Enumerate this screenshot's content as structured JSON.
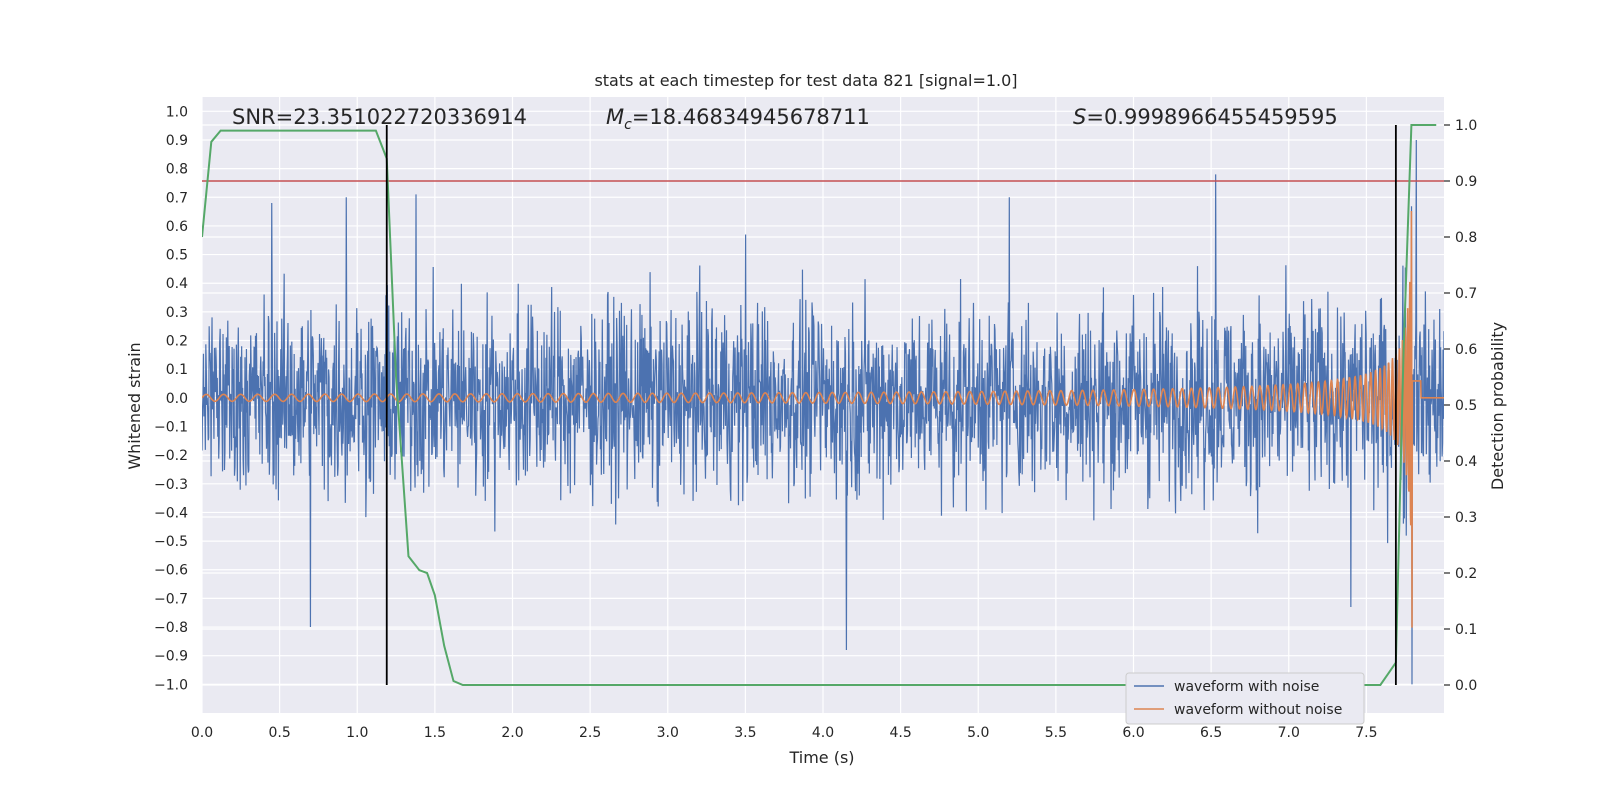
{
  "chart_data": {
    "type": "line",
    "title": "stats at each timestep for test data 821 [signal=1.0]",
    "xlabel": "Time (s)",
    "ylabel": "Whitened strain",
    "y2label": "Detection probability",
    "xlim": [
      0.0,
      8.0
    ],
    "ylim": [
      -1.1,
      1.05
    ],
    "y2lim": [
      -0.05,
      1.05
    ],
    "x_ticks": [
      0.0,
      0.5,
      1.0,
      1.5,
      2.0,
      2.5,
      3.0,
      3.5,
      4.0,
      4.5,
      5.0,
      5.5,
      6.0,
      6.5,
      7.0,
      7.5
    ],
    "x_tick_labels": [
      "0.0",
      "0.5",
      "1.0",
      "1.5",
      "2.0",
      "2.5",
      "3.0",
      "3.5",
      "4.0",
      "4.5",
      "5.0",
      "5.5",
      "6.0",
      "6.5",
      "7.0",
      "7.5"
    ],
    "y_ticks": [
      -1.0,
      -0.9,
      -0.8,
      -0.7,
      -0.6,
      -0.5,
      -0.4,
      -0.3,
      -0.2,
      -0.1,
      0.0,
      0.1,
      0.2,
      0.3,
      0.4,
      0.5,
      0.6,
      0.7,
      0.8,
      0.9,
      1.0
    ],
    "y_tick_labels": [
      "−1.0",
      "−0.9",
      "−0.8",
      "−0.7",
      "−0.6",
      "−0.5",
      "−0.4",
      "−0.3",
      "−0.2",
      "−0.1",
      "0.0",
      "0.1",
      "0.2",
      "0.3",
      "0.4",
      "0.5",
      "0.6",
      "0.7",
      "0.8",
      "0.9",
      "1.0"
    ],
    "y2_ticks": [
      0.0,
      0.1,
      0.2,
      0.3,
      0.4,
      0.5,
      0.6,
      0.7,
      0.8,
      0.9,
      1.0
    ],
    "y2_tick_labels": [
      "0.0",
      "0.1",
      "0.2",
      "0.3",
      "0.4",
      "0.5",
      "0.6",
      "0.7",
      "0.8",
      "0.9",
      "1.0"
    ],
    "grid": true,
    "annotations": {
      "snr": "SNR=23.351022720336914",
      "mc_symbol": "M",
      "mc_subscript": "c",
      "mc_value": "=18.46834945678711",
      "s_symbol": "S",
      "s_value": "=0.9998966455459595"
    },
    "legend": {
      "placement": "lower-right",
      "entries": [
        "waveform with noise",
        "waveform without noise"
      ]
    },
    "colors": {
      "noise": "#4c72b0",
      "clean": "#dd8452",
      "probability": "#55a868",
      "threshold": "#c44e52",
      "markers": "#000000",
      "background": "#eaeaf2",
      "grid": "#ffffff"
    },
    "threshold": 0.9,
    "vertical_markers": [
      1.19,
      7.69
    ],
    "noise_series": {
      "name": "waveform with noise",
      "x_range": [
        0.0,
        8.0
      ],
      "typical_envelope": 0.3,
      "notable_peaks": [
        {
          "x": 0.45,
          "y": 0.68
        },
        {
          "x": 0.7,
          "y": -0.8
        },
        {
          "x": 0.93,
          "y": 0.7
        },
        {
          "x": 1.38,
          "y": 0.71
        },
        {
          "x": 3.5,
          "y": 0.57
        },
        {
          "x": 4.15,
          "y": -0.88
        },
        {
          "x": 5.2,
          "y": 0.7
        },
        {
          "x": 6.53,
          "y": 0.78
        },
        {
          "x": 7.4,
          "y": -0.73
        },
        {
          "x": 7.82,
          "y": -1.0
        },
        {
          "x": 7.82,
          "y": 0.9
        }
      ]
    },
    "clean_series": {
      "name": "waveform without noise",
      "x_range": [
        0.0,
        8.0
      ],
      "chirp_merger_time": 7.8,
      "amplitude_start": 0.012,
      "amplitude_peak": 0.81
    },
    "probability_series": {
      "name": "",
      "x": [
        0.0,
        0.06,
        0.12,
        0.25,
        1.0,
        1.12,
        1.19,
        1.25,
        1.33,
        1.4,
        1.45,
        1.5,
        1.56,
        1.62,
        1.68,
        7.59,
        7.64,
        7.69,
        7.74,
        7.79,
        7.95
      ],
      "y": [
        0.8,
        0.97,
        0.99,
        0.99,
        0.99,
        0.99,
        0.94,
        0.55,
        0.23,
        0.205,
        0.2,
        0.16,
        0.07,
        0.007,
        0.0,
        0.0,
        0.02,
        0.04,
        0.6,
        1.0,
        1.0
      ]
    }
  }
}
